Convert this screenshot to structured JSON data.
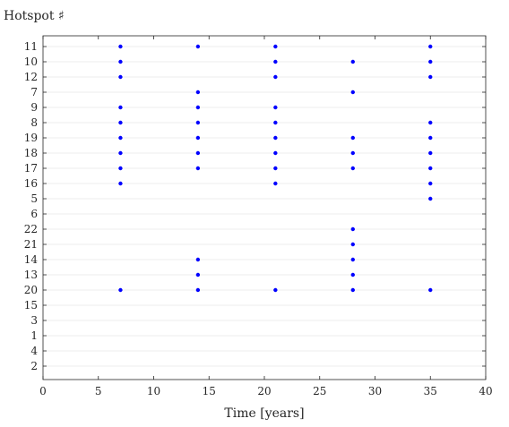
{
  "chart_data": {
    "type": "scatter",
    "ylabel": "Hotspot ♯",
    "xlabel": "Time [years]",
    "xlim": [
      0,
      40
    ],
    "x_ticks": [
      0,
      5,
      10,
      15,
      20,
      25,
      30,
      35,
      40
    ],
    "y_categories_top_to_bottom": [
      "11",
      "10",
      "12",
      "7",
      "9",
      "8",
      "19",
      "18",
      "17",
      "16",
      "5",
      "6",
      "22",
      "21",
      "14",
      "13",
      "20",
      "15",
      "3",
      "1",
      "4",
      "2"
    ],
    "grid": "horizontal",
    "marker_color": "#0000ff",
    "points": [
      {
        "x": 7,
        "hotspot": "11"
      },
      {
        "x": 7,
        "hotspot": "10"
      },
      {
        "x": 7,
        "hotspot": "12"
      },
      {
        "x": 7,
        "hotspot": "9"
      },
      {
        "x": 7,
        "hotspot": "8"
      },
      {
        "x": 7,
        "hotspot": "19"
      },
      {
        "x": 7,
        "hotspot": "18"
      },
      {
        "x": 7,
        "hotspot": "17"
      },
      {
        "x": 7,
        "hotspot": "16"
      },
      {
        "x": 7,
        "hotspot": "20"
      },
      {
        "x": 14,
        "hotspot": "11"
      },
      {
        "x": 14,
        "hotspot": "7"
      },
      {
        "x": 14,
        "hotspot": "9"
      },
      {
        "x": 14,
        "hotspot": "8"
      },
      {
        "x": 14,
        "hotspot": "19"
      },
      {
        "x": 14,
        "hotspot": "18"
      },
      {
        "x": 14,
        "hotspot": "17"
      },
      {
        "x": 14,
        "hotspot": "14"
      },
      {
        "x": 14,
        "hotspot": "13"
      },
      {
        "x": 14,
        "hotspot": "20"
      },
      {
        "x": 21,
        "hotspot": "11"
      },
      {
        "x": 21,
        "hotspot": "10"
      },
      {
        "x": 21,
        "hotspot": "12"
      },
      {
        "x": 21,
        "hotspot": "9"
      },
      {
        "x": 21,
        "hotspot": "8"
      },
      {
        "x": 21,
        "hotspot": "19"
      },
      {
        "x": 21,
        "hotspot": "18"
      },
      {
        "x": 21,
        "hotspot": "17"
      },
      {
        "x": 21,
        "hotspot": "16"
      },
      {
        "x": 21,
        "hotspot": "20"
      },
      {
        "x": 28,
        "hotspot": "10"
      },
      {
        "x": 28,
        "hotspot": "7"
      },
      {
        "x": 28,
        "hotspot": "19"
      },
      {
        "x": 28,
        "hotspot": "18"
      },
      {
        "x": 28,
        "hotspot": "17"
      },
      {
        "x": 28,
        "hotspot": "22"
      },
      {
        "x": 28,
        "hotspot": "21"
      },
      {
        "x": 28,
        "hotspot": "14"
      },
      {
        "x": 28,
        "hotspot": "13"
      },
      {
        "x": 28,
        "hotspot": "20"
      },
      {
        "x": 35,
        "hotspot": "11"
      },
      {
        "x": 35,
        "hotspot": "10"
      },
      {
        "x": 35,
        "hotspot": "12"
      },
      {
        "x": 35,
        "hotspot": "8"
      },
      {
        "x": 35,
        "hotspot": "19"
      },
      {
        "x": 35,
        "hotspot": "18"
      },
      {
        "x": 35,
        "hotspot": "17"
      },
      {
        "x": 35,
        "hotspot": "16"
      },
      {
        "x": 35,
        "hotspot": "5"
      },
      {
        "x": 35,
        "hotspot": "20"
      }
    ]
  }
}
